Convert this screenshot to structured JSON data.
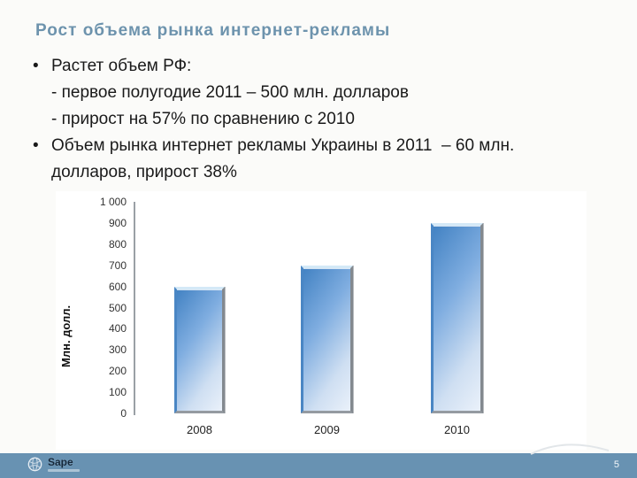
{
  "slide": {
    "title": "Рост объема рынка интернет-рекламы",
    "bullet_char": "•",
    "bullets": [
      {
        "lines": [
          "Растет объем РФ:",
          "- первое полугодие 2011 – 500 млн. долларов",
          "- прирост на 57% по сравнению с 2010"
        ]
      },
      {
        "lines": [
          "Объем рынка интернет рекламы Украины в 2011  – 60 млн.",
          "долларов, прирост 38%"
        ]
      }
    ],
    "footer": {
      "logo_text": "Sape",
      "page_number": "5"
    }
  },
  "chart_data": {
    "type": "bar",
    "title": "",
    "categories": [
      "2008",
      "2009",
      "2010"
    ],
    "values": [
      600,
      700,
      900
    ],
    "xlabel": "",
    "ylabel": "Млн. долл.",
    "ylim": [
      0,
      1000
    ],
    "ytick_step": 100,
    "ytick_labels": [
      "1 000",
      "900",
      "800",
      "700",
      "600",
      "500",
      "400",
      "300",
      "200",
      "100",
      "0"
    ],
    "grid": false,
    "legend": "none",
    "bar_style": "beveled 3-D gradient, blue top-left to pale blue bottom-right"
  },
  "colors": {
    "slide_background": "#fbfbf9",
    "title_text": "#6d93ad",
    "body_text": "#1a1a1a",
    "footer_band": "#6892b2",
    "bar_gradient_start": "#4282c3",
    "bar_gradient_end": "#eaf1fa",
    "axis_line": "#9aa0a6"
  }
}
